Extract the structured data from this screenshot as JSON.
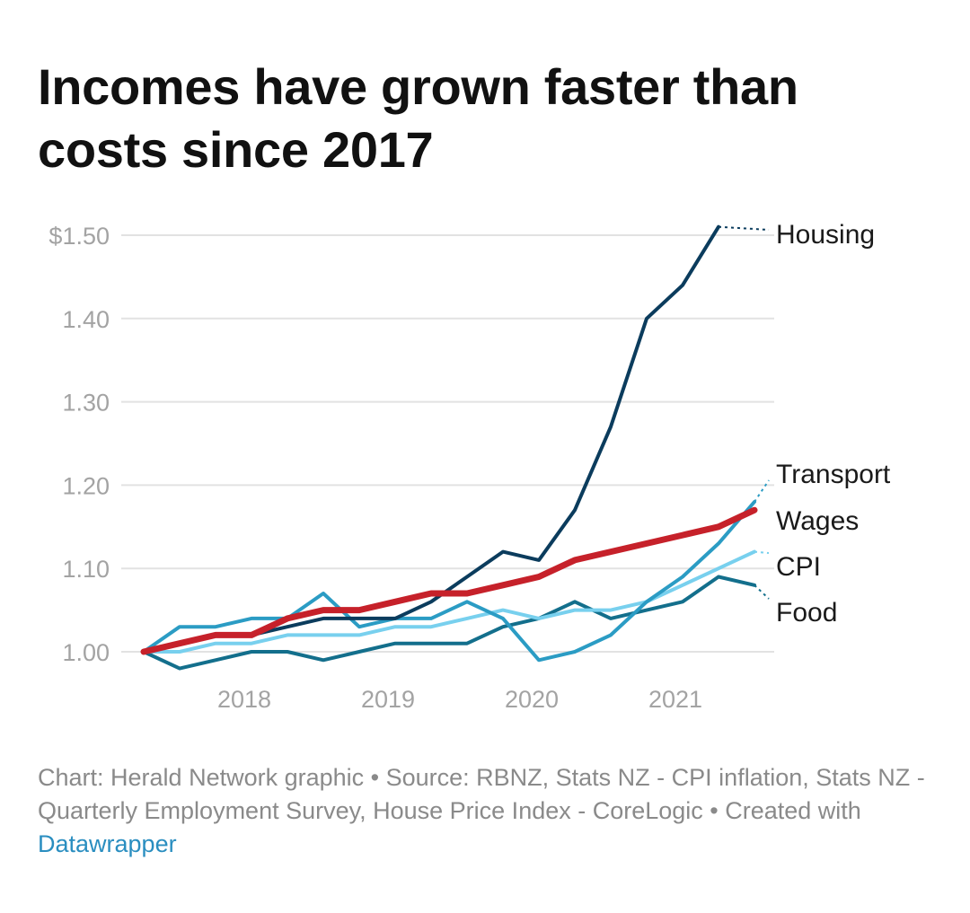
{
  "header": {
    "title": "Incomes have grown faster than costs since 2017"
  },
  "footer": {
    "source_text": "Chart: Herald Network graphic • Source: RBNZ, Stats NZ - CPI inflation, Stats NZ - Quarterly Employment Survey, House Price Index - CoreLogic • Created with ",
    "link_text": "Datawrapper"
  },
  "chart_data": {
    "type": "line",
    "title": "Incomes have grown faster than costs since 2017",
    "xlabel": "",
    "ylabel": "",
    "ylim": [
      1.0,
      1.5
    ],
    "y_ticks": [
      "$1.50",
      "1.40",
      "1.30",
      "1.20",
      "1.10",
      "1.00"
    ],
    "y_tick_values": [
      1.5,
      1.4,
      1.3,
      1.2,
      1.1,
      1.0
    ],
    "x_ticks": [
      "2018",
      "2019",
      "2020",
      "2021"
    ],
    "x_tick_values": [
      2018,
      2019,
      2020,
      2021
    ],
    "grid": true,
    "legend": "direct labels at right end of lines",
    "x": [
      2017.5,
      2017.75,
      2018.0,
      2018.25,
      2018.5,
      2018.75,
      2019.0,
      2019.25,
      2019.5,
      2019.75,
      2020.0,
      2020.25,
      2020.5,
      2020.75,
      2021.0,
      2021.25,
      2021.5,
      2021.75
    ],
    "series": [
      {
        "name": "Housing",
        "color": "#0b3c5d",
        "values": [
          1.0,
          1.01,
          1.02,
          1.02,
          1.03,
          1.04,
          1.04,
          1.04,
          1.06,
          1.09,
          1.12,
          1.11,
          1.17,
          1.27,
          1.4,
          1.44,
          1.51,
          null
        ]
      },
      {
        "name": "Transport",
        "color": "#2b9cc4",
        "values": [
          1.0,
          1.03,
          1.03,
          1.04,
          1.04,
          1.07,
          1.03,
          1.04,
          1.04,
          1.06,
          1.04,
          0.99,
          1.0,
          1.02,
          1.06,
          1.09,
          1.13,
          1.18
        ]
      },
      {
        "name": "Wages",
        "color": "#c6212a",
        "values": [
          1.0,
          1.01,
          1.02,
          1.02,
          1.04,
          1.05,
          1.05,
          1.06,
          1.07,
          1.07,
          1.08,
          1.09,
          1.11,
          1.12,
          1.13,
          1.14,
          1.15,
          1.17
        ]
      },
      {
        "name": "CPI",
        "color": "#78d0ee",
        "values": [
          1.0,
          1.0,
          1.01,
          1.01,
          1.02,
          1.02,
          1.02,
          1.03,
          1.03,
          1.04,
          1.05,
          1.04,
          1.05,
          1.05,
          1.06,
          1.08,
          1.1,
          1.12
        ]
      },
      {
        "name": "Food",
        "color": "#136f8c",
        "values": [
          1.0,
          0.98,
          0.99,
          1.0,
          1.0,
          0.99,
          1.0,
          1.01,
          1.01,
          1.01,
          1.03,
          1.04,
          1.06,
          1.04,
          1.05,
          1.06,
          1.09,
          1.08
        ]
      }
    ]
  }
}
